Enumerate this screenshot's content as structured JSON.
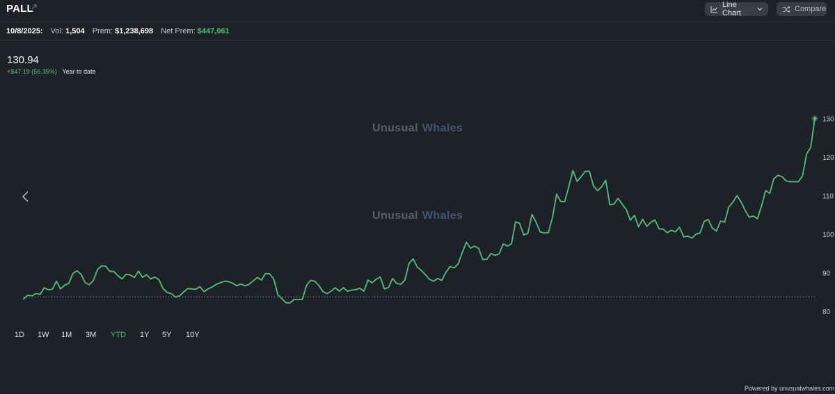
{
  "header": {
    "ticker": "PALL",
    "chart_type_label": "Line Chart",
    "compare_label": "Compare"
  },
  "stats": {
    "date": "10/8/2025:",
    "vol_label": "Vol:",
    "vol_value": "1,504",
    "prem_label": "Prem:",
    "prem_value": "$1,238,698",
    "net_prem_label": "Net Prem:",
    "net_prem_value": "$447,061"
  },
  "price": {
    "last": "130.94",
    "change": "+$47.19 (56.35%)",
    "period": "Year to date"
  },
  "watermark": {
    "word1": "Unusual",
    "word2": "Whales"
  },
  "ranges": {
    "items": [
      "1D",
      "1W",
      "1M",
      "3M",
      "YTD",
      "1Y",
      "5Y",
      "10Y"
    ],
    "active": "YTD"
  },
  "footer": {
    "powered_by": "Powered by unusualwhales.com"
  },
  "colors": {
    "line": "#4fc17a",
    "background": "#1f2128",
    "baseline": "#aab0ba"
  },
  "chart_data": {
    "type": "line",
    "title": "",
    "xlabel": "",
    "ylabel": "",
    "ylim": [
      78,
      132
    ],
    "y_ticks": [
      130,
      120,
      110,
      100,
      90,
      80
    ],
    "baseline_value": 83.75,
    "grid": false,
    "series": [
      {
        "values": [
          83.2,
          84.2,
          84.0,
          84.6,
          84.4,
          86.1,
          85.6,
          85.7,
          87.8,
          85.8,
          86.8,
          87.2,
          89.8,
          90.5,
          89.6,
          87.4,
          86.9,
          88.0,
          90.8,
          91.8,
          91.7,
          90.4,
          90.3,
          89.2,
          88.4,
          89.6,
          89.4,
          88.8,
          90.4,
          88.8,
          89.5,
          88.4,
          88.9,
          88.2,
          85.9,
          84.9,
          84.6,
          83.7,
          84.0,
          85.0,
          85.9,
          85.8,
          85.7,
          86.4,
          85.1,
          85.8,
          86.3,
          87.0,
          87.4,
          87.8,
          87.7,
          87.3,
          86.6,
          87.1,
          86.6,
          87.0,
          87.9,
          88.8,
          88.1,
          89.8,
          89.7,
          88.4,
          84.3,
          83.3,
          82.2,
          82.2,
          83.1,
          83.0,
          83.1,
          86.7,
          88.0,
          87.8,
          86.7,
          85.1,
          84.6,
          85.2,
          86.1,
          85.2,
          86.1,
          85.2,
          85.5,
          85.6,
          86.0,
          85.2,
          88.1,
          87.4,
          88.3,
          88.9,
          85.8,
          86.2,
          88.5,
          87.2,
          87.0,
          88.1,
          92.4,
          93.6,
          91.5,
          90.6,
          89.5,
          88.3,
          87.8,
          88.5,
          88.0,
          90.1,
          91.6,
          91.3,
          92.3,
          95.3,
          97.9,
          96.4,
          96.9,
          96.3,
          93.4,
          93.5,
          95.0,
          94.5,
          94.9,
          97.5,
          96.9,
          97.5,
          103.2,
          102.8,
          99.8,
          100.2,
          105.1,
          103.1,
          100.6,
          100.3,
          100.4,
          104.3,
          110.4,
          108.5,
          108.4,
          112.4,
          116.5,
          113.7,
          114.9,
          116.3,
          116.3,
          112.5,
          111.3,
          112.3,
          114.0,
          107.6,
          107.8,
          109.3,
          107.8,
          106.4,
          103.6,
          104.9,
          101.9,
          103.9,
          102.0,
          103.1,
          103.7,
          101.4,
          101.3,
          100.4,
          101.0,
          100.6,
          101.8,
          99.3,
          99.5,
          99.0,
          100.0,
          100.3,
          103.3,
          103.8,
          101.6,
          100.8,
          103.4,
          103.1,
          107.0,
          108.3,
          110.0,
          108.4,
          106.2,
          104.4,
          104.7,
          104.0,
          107.3,
          111.3,
          110.6,
          114.4,
          115.3,
          114.9,
          113.8,
          113.6,
          113.6,
          113.6,
          115.1,
          120.8,
          122.5,
          130.0
        ]
      }
    ]
  }
}
